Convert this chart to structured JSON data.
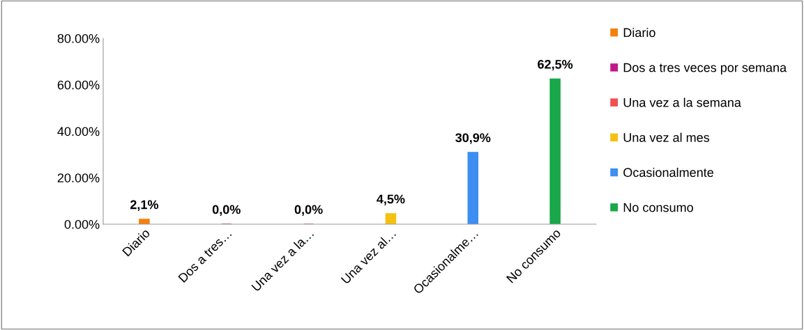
{
  "chart_data": {
    "type": "bar",
    "categories": [
      "Diario",
      "Dos a tres…",
      "Una vez a la…",
      "Una vez al…",
      "Ocasionalme…",
      "No consumo"
    ],
    "series": [
      {
        "name": "Diario",
        "color": "#f57f0c",
        "values": [
          2.1,
          null,
          null,
          null,
          null,
          null
        ],
        "value_labels": [
          "2,1%",
          null,
          null,
          null,
          null,
          null
        ]
      },
      {
        "name": "Dos a tres veces por semana",
        "color": "#c0168c",
        "values": [
          null,
          0,
          null,
          null,
          null,
          null
        ],
        "value_labels": [
          null,
          "0,0%",
          null,
          null,
          null,
          null
        ]
      },
      {
        "name": "Una vez a la semana",
        "color": "#f0504f",
        "values": [
          null,
          null,
          0,
          null,
          null,
          null
        ],
        "value_labels": [
          null,
          null,
          "0,0%",
          null,
          null,
          null
        ]
      },
      {
        "name": "Una vez al mes",
        "color": "#f5c010",
        "values": [
          null,
          null,
          null,
          4.5,
          null,
          null
        ],
        "value_labels": [
          null,
          null,
          null,
          "4,5%",
          null,
          null
        ]
      },
      {
        "name": "Ocasionalmente",
        "color": "#3d8ef0",
        "values": [
          null,
          null,
          null,
          null,
          30.9,
          null
        ],
        "value_labels": [
          null,
          null,
          null,
          null,
          "30,9%",
          null
        ]
      },
      {
        "name": "No consumo",
        "color": "#18a84a",
        "values": [
          null,
          null,
          null,
          null,
          null,
          62.5
        ],
        "value_labels": [
          null,
          null,
          null,
          null,
          null,
          "62,5%"
        ]
      }
    ],
    "ylim": [
      0,
      80
    ],
    "yticks": [
      {
        "value": 0,
        "label": "0.00%"
      },
      {
        "value": 20,
        "label": "20.00%"
      },
      {
        "value": 40,
        "label": "40.00%"
      },
      {
        "value": 60,
        "label": "60.00%"
      },
      {
        "value": 80,
        "label": "80.00%"
      }
    ],
    "grid": false,
    "legend": "right"
  }
}
